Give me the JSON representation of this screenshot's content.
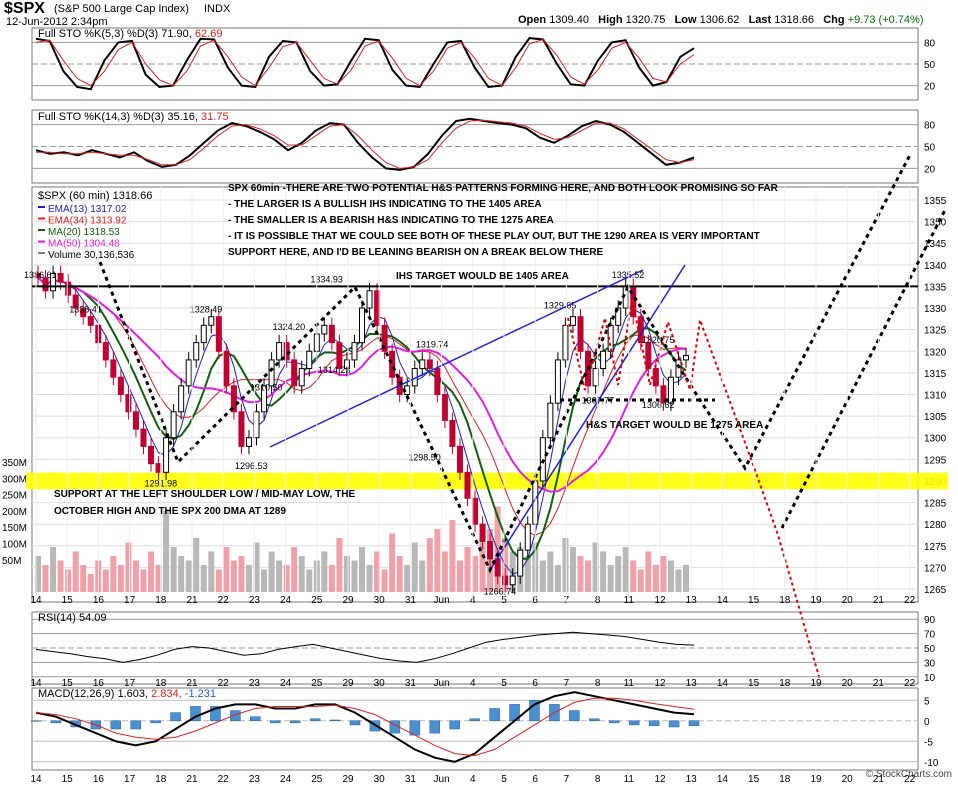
{
  "header": {
    "symbol": "$SPX",
    "name": "(S&P 500 Large Cap Index)",
    "exchange": "INDX",
    "date": "12-Jun-2012 2:34pm",
    "open_label": "Open",
    "open": "1309.40",
    "high_label": "High",
    "high": "1320.75",
    "low_label": "Low",
    "low": "1306.62",
    "last_label": "Last",
    "last": "1318.66",
    "chg_label": "Chg",
    "chg": "+9.73 (+0.74%)",
    "chg_color": "#007000",
    "watermark": "© StockCharts.com"
  },
  "colors": {
    "candle_down": "#c00030",
    "candle_up": "#000000",
    "ema13": "#2020c0",
    "ema34": "#e02020",
    "ma20": "#106010",
    "ma50": "#e020e0",
    "support_band": "#ffff00",
    "bull_path": "#000000",
    "bear_path": "#e00000",
    "trendline": "#2020e0"
  },
  "chart_data": [
    {
      "type": "line",
      "panel": "stoch_fast",
      "label": "Full STO %K(5,3) %D(3) 71.90, 62.69",
      "label_main": "Full STO %K(5,3) %D(3) 71.90,",
      "label_d": "62.69",
      "ylim": [
        0,
        100
      ],
      "y_ticks": [
        "80",
        "50",
        "20"
      ],
      "series": [
        {
          "name": "%K",
          "values": [
            85,
            82,
            40,
            18,
            15,
            55,
            80,
            82,
            35,
            18,
            20,
            55,
            85,
            84,
            45,
            20,
            18,
            60,
            82,
            80,
            40,
            20,
            22,
            55,
            85,
            83,
            42,
            20,
            18,
            50,
            80,
            82,
            45,
            18,
            20,
            60,
            86,
            84,
            50,
            22,
            20,
            55,
            80,
            83,
            45,
            20,
            25,
            60,
            72
          ]
        },
        {
          "name": "%D",
          "values": [
            80,
            83,
            55,
            30,
            20,
            40,
            70,
            80,
            50,
            28,
            20,
            40,
            75,
            83,
            60,
            32,
            20,
            45,
            74,
            80,
            55,
            30,
            22,
            42,
            75,
            82,
            58,
            30,
            20,
            40,
            72,
            80,
            58,
            30,
            20,
            45,
            78,
            84,
            62,
            32,
            22,
            42,
            72,
            80,
            58,
            30,
            25,
            50,
            63
          ]
        }
      ]
    },
    {
      "type": "line",
      "panel": "stoch_slow",
      "label": "Full STO %K(14,3) %D(3) 35.16, 31.75",
      "label_main": "Full STO %K(14,3) %D(3) 35.16,",
      "label_d": "31.75",
      "ylim": [
        0,
        100
      ],
      "y_ticks": [
        "80",
        "50",
        "20"
      ],
      "series": [
        {
          "name": "%K",
          "values": [
            45,
            40,
            42,
            38,
            45,
            40,
            35,
            42,
            30,
            22,
            25,
            38,
            55,
            72,
            82,
            78,
            70,
            60,
            45,
            55,
            72,
            82,
            80,
            55,
            35,
            20,
            18,
            22,
            40,
            65,
            85,
            88,
            85,
            82,
            80,
            75,
            62,
            55,
            65,
            78,
            85,
            80,
            70,
            55,
            40,
            25,
            28,
            35
          ]
        },
        {
          "name": "%D",
          "values": [
            42,
            42,
            40,
            40,
            42,
            40,
            38,
            38,
            32,
            25,
            25,
            32,
            48,
            65,
            78,
            80,
            74,
            65,
            52,
            52,
            65,
            78,
            80,
            65,
            45,
            28,
            20,
            22,
            32,
            55,
            75,
            85,
            86,
            84,
            82,
            78,
            68,
            60,
            62,
            72,
            82,
            82,
            74,
            60,
            46,
            32,
            28,
            32
          ]
        }
      ]
    },
    {
      "type": "bar",
      "panel": "price",
      "title": "$SPX (60 min) 1318.66",
      "legend": [
        {
          "label": "EMA(13) 1317.02",
          "color": "#2020c0"
        },
        {
          "label": "EMA(34) 1313.92",
          "color": "#e02020"
        },
        {
          "label": "MA(20) 1318.53",
          "color": "#106010"
        },
        {
          "label": "MA(50) 1304.48",
          "color": "#e020e0"
        },
        {
          "label": "Volume 30,136,536",
          "color": "#808080"
        }
      ],
      "ylim": [
        1262,
        1358
      ],
      "y_ticks": [
        1265,
        1270,
        1275,
        1280,
        1285,
        1290,
        1295,
        1300,
        1305,
        1310,
        1315,
        1320,
        1325,
        1330,
        1335,
        1340,
        1345,
        1350,
        1355
      ],
      "x_tick_labels": [
        "14",
        "15",
        "16",
        "17",
        "18",
        "21",
        "22",
        "23",
        "24",
        "25",
        "29",
        "30",
        "31",
        "Jun",
        "4",
        "5",
        "6",
        "7",
        "8",
        "11",
        "12",
        "13",
        "14",
        "15",
        "18",
        "19",
        "20",
        "21",
        "22"
      ],
      "close_series": [
        1337,
        1334,
        1338,
        1336,
        1333,
        1330,
        1328,
        1326,
        1322,
        1318,
        1314,
        1310,
        1306,
        1302,
        1298,
        1294,
        1292,
        1300,
        1306,
        1312,
        1318,
        1322,
        1326,
        1328,
        1320,
        1312,
        1306,
        1298,
        1300,
        1306,
        1312,
        1318,
        1322,
        1318,
        1312,
        1316,
        1320,
        1324,
        1326,
        1322,
        1316,
        1318,
        1322,
        1330,
        1334,
        1326,
        1320,
        1314,
        1310,
        1312,
        1316,
        1318,
        1316,
        1310,
        1304,
        1298,
        1292,
        1286,
        1280,
        1276,
        1272,
        1268,
        1266,
        1268,
        1274,
        1280,
        1290,
        1300,
        1308,
        1318,
        1326,
        1328,
        1320,
        1312,
        1316,
        1320,
        1326,
        1330,
        1335,
        1328,
        1322,
        1316,
        1312,
        1308,
        1314,
        1318,
        1319
      ],
      "volume_values": [
        40,
        30,
        50,
        35,
        25,
        45,
        30,
        20,
        35,
        25,
        40,
        30,
        55,
        35,
        25,
        45,
        30,
        90,
        50,
        40,
        35,
        60,
        30,
        45,
        25,
        50,
        35,
        40,
        30,
        55,
        25,
        45,
        35,
        30,
        50,
        40,
        25,
        35,
        45,
        30,
        60,
        40,
        35,
        50,
        30,
        45,
        25,
        65,
        40,
        30,
        55,
        35,
        60,
        70,
        45,
        80,
        35,
        50,
        40,
        55,
        70,
        95,
        60,
        45,
        50,
        40,
        55,
        35,
        45,
        30,
        60,
        50,
        40,
        35,
        55,
        45,
        30,
        40,
        50,
        35,
        25,
        45,
        30,
        40,
        35,
        25,
        30
      ],
      "yellow_band": {
        "low": 1289,
        "high": 1291
      },
      "horizontal_line": 1335,
      "labels": [
        {
          "text": "1336.61",
          "x": 0,
          "y": 1336
        },
        {
          "text": "1328.41",
          "x": 6,
          "y": 1328
        },
        {
          "text": "1328.49",
          "x": 22,
          "y": 1328
        },
        {
          "text": "1291.98",
          "x": 16,
          "y": 1292
        },
        {
          "text": "1324.20",
          "x": 33,
          "y": 1324
        },
        {
          "text": "1310.50",
          "x": 30,
          "y": 1310
        },
        {
          "text": "1296.53",
          "x": 28,
          "y": 1296
        },
        {
          "text": "1334.93",
          "x": 38,
          "y": 1335
        },
        {
          "text": "1314.23",
          "x": 39,
          "y": 1314
        },
        {
          "text": "1319.74",
          "x": 52,
          "y": 1320
        },
        {
          "text": "1298.50",
          "x": 51,
          "y": 1298
        },
        {
          "text": "1266.74",
          "x": 61,
          "y": 1267
        },
        {
          "text": "1329.05",
          "x": 69,
          "y": 1329
        },
        {
          "text": "1335.52",
          "x": 78,
          "y": 1336
        },
        {
          "text": "1307.77",
          "x": 74,
          "y": 1307
        },
        {
          "text": "1320.75",
          "x": 82,
          "y": 1321
        },
        {
          "text": "1306.62",
          "x": 82,
          "y": 1306
        }
      ],
      "annotations": {
        "note_line1": "SPX 60min -THERE ARE TWO POTENTIAL H&S PATTERNS FORMING HERE, AND BOTH LOOK PROMISING SO FAR",
        "note_line2": "- THE LARGER IS A BULLISH IHS INDICATING TO THE 1405 AREA",
        "note_line3": "- THE SMALLER IS A BEARISH H&S INDICATING TO THE 1275 AREA",
        "note_line4": "- IT IS POSSIBLE THAT WE COULD SEE BOTH OF THESE PLAY OUT, BUT THE 1290 AREA IS VERY IMPORTANT",
        "note_line5": "SUPPORT HERE, AND I'D BE LEANING BEARISH ON A BREAK BELOW THERE",
        "ihs_target": "IHS TARGET WOULD BE 1405 AREA",
        "hs_target": "H&S TARGET WOULD BE 1275 AREA",
        "support_line1": "SUPPORT AT THE LEFT SHOULDER LOW / MID-MAY LOW, THE",
        "support_line2": "OCTOBER HIGH AND THE SPX 200 DMA AT 1289"
      },
      "volume_axis": [
        "350M",
        "300M",
        "250M",
        "200M",
        "150M",
        "100M",
        "50M"
      ]
    },
    {
      "type": "line",
      "panel": "rsi",
      "label": "RSI(14) 54.09",
      "ylim": [
        0,
        100
      ],
      "y_ticks": [
        "90",
        "70",
        "50",
        "30",
        "10"
      ],
      "series": [
        {
          "name": "RSI",
          "values": [
            48,
            45,
            42,
            38,
            35,
            30,
            34,
            40,
            48,
            52,
            50,
            45,
            40,
            42,
            48,
            52,
            55,
            50,
            45,
            40,
            35,
            32,
            30,
            35,
            42,
            50,
            58,
            62,
            65,
            68,
            70,
            72,
            70,
            68,
            66,
            62,
            58,
            55,
            54
          ]
        }
      ]
    },
    {
      "type": "bar",
      "panel": "macd",
      "label": "MACD(12,26,9) 1.603, 2.834, -1.231",
      "label_main": "MACD(12,26,9) 1.603,",
      "label_signal": "2.834,",
      "label_hist": "-1.231",
      "ylim": [
        -12,
        8
      ],
      "y_ticks": [
        "5",
        "0",
        "-5",
        "-10"
      ],
      "series": [
        {
          "name": "MACD",
          "values": [
            2,
            1,
            -1,
            -3,
            -5,
            -6,
            -5,
            -2,
            1,
            3,
            4,
            4,
            3,
            3,
            4,
            4,
            2,
            -1,
            -4,
            -7,
            -9,
            -10,
            -8,
            -4,
            0,
            4,
            6,
            7,
            6,
            5,
            4,
            3,
            2,
            1.6
          ]
        },
        {
          "name": "Signal",
          "values": [
            2,
            1.5,
            0.5,
            -1,
            -3,
            -4,
            -4.5,
            -4,
            -2.5,
            -0.5,
            1.5,
            3,
            3.5,
            3.5,
            3.5,
            3.8,
            3,
            1.5,
            -1,
            -3.5,
            -6,
            -8,
            -8.5,
            -7,
            -4,
            -1,
            2,
            4.5,
            5.5,
            5.5,
            5,
            4.2,
            3.5,
            2.8
          ]
        },
        {
          "name": "Histogram",
          "values": [
            0,
            -0.5,
            -1.5,
            -2,
            -2,
            -2,
            -0.5,
            2,
            3.5,
            3.5,
            2.5,
            1,
            -0.5,
            -0.5,
            0.5,
            0.2,
            -1,
            -2.5,
            -3,
            -3.5,
            -3,
            -2,
            0.5,
            3,
            4,
            5,
            4,
            2.5,
            0.5,
            -0.5,
            -1,
            -1.2,
            -1.5,
            -1.2
          ]
        }
      ]
    }
  ]
}
